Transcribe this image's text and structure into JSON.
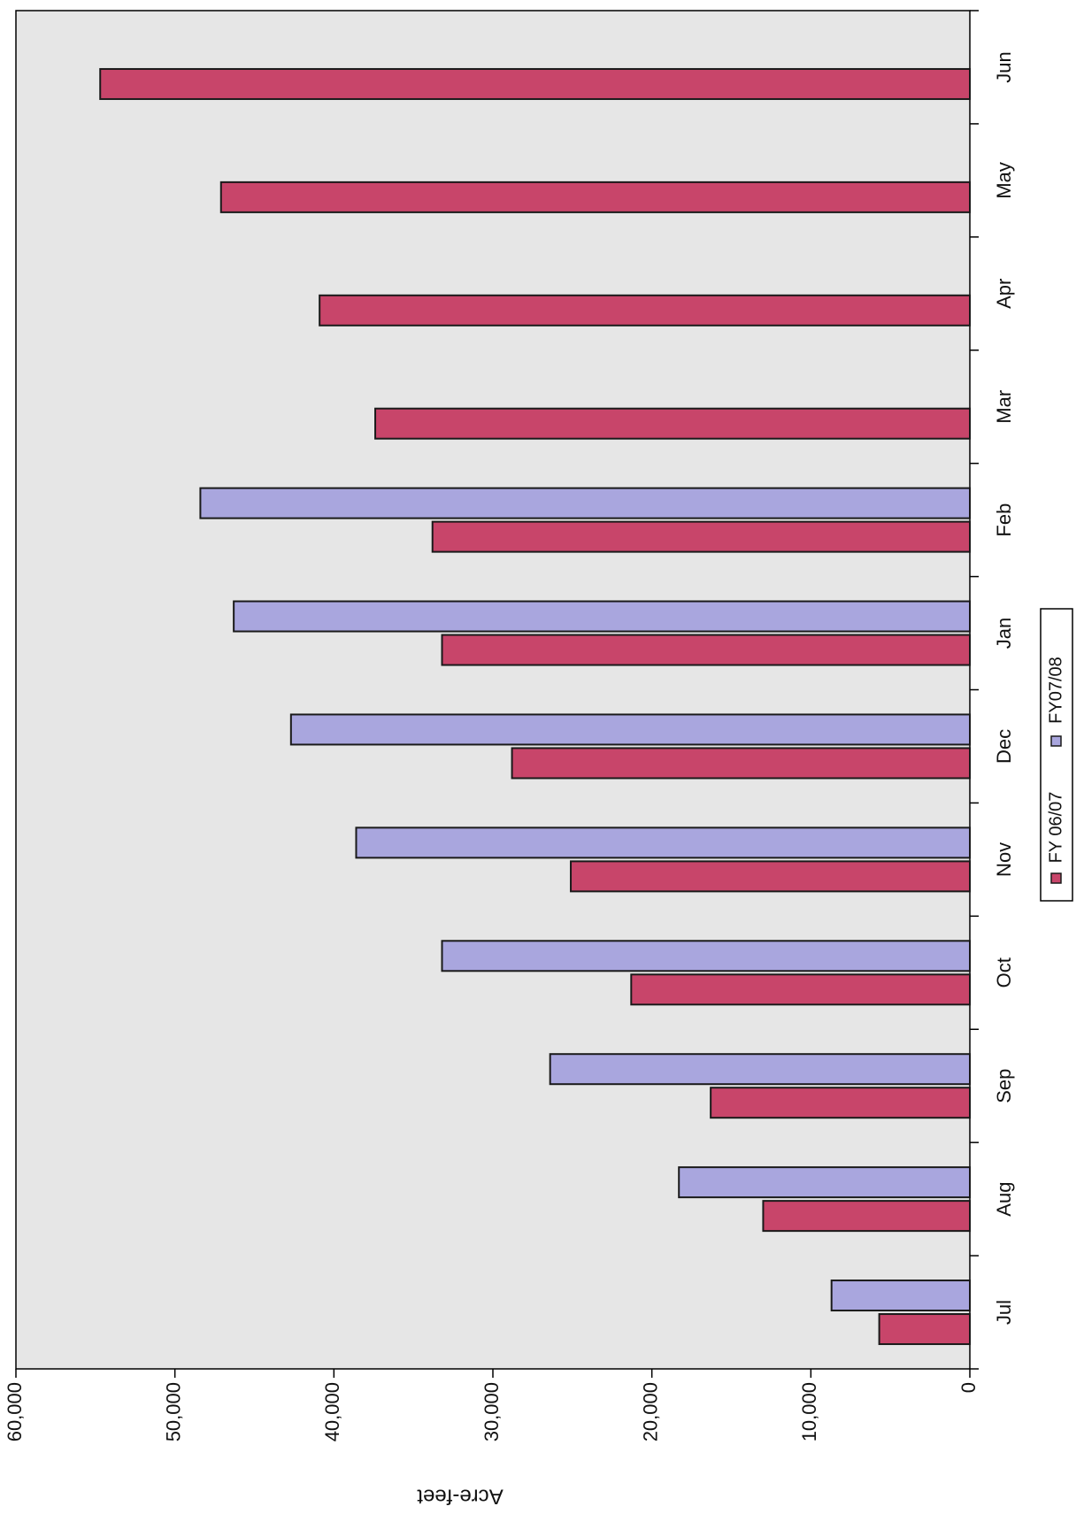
{
  "chart_data": {
    "type": "bar",
    "orientation": "rotated-90-clockwise",
    "title": "",
    "xlabel": "",
    "ylabel": "Acre-feet",
    "categories": [
      "Jul",
      "Aug",
      "Sep",
      "Oct",
      "Nov",
      "Dec",
      "Jan",
      "Feb",
      "Mar",
      "Apr",
      "May",
      "Jun"
    ],
    "ylim": [
      0,
      60000
    ],
    "yticks": [
      0,
      10000,
      20000,
      30000,
      40000,
      50000,
      60000
    ],
    "ytick_labels": [
      "0",
      "10,000",
      "20,000",
      "30,000",
      "40,000",
      "50,000",
      "60,000"
    ],
    "grid": false,
    "legend_placement": "bottom",
    "series": [
      {
        "name": "FY 06/07",
        "color": "#c8456a",
        "values": [
          5700,
          13000,
          16300,
          21300,
          25100,
          28800,
          33200,
          33800,
          37400,
          40900,
          47100,
          54700
        ]
      },
      {
        "name": "FY07/08",
        "color": "#a9a6de",
        "values": [
          8700,
          18300,
          26400,
          33200,
          38600,
          42700,
          46300,
          48400,
          null,
          null,
          null,
          null
        ]
      }
    ]
  }
}
